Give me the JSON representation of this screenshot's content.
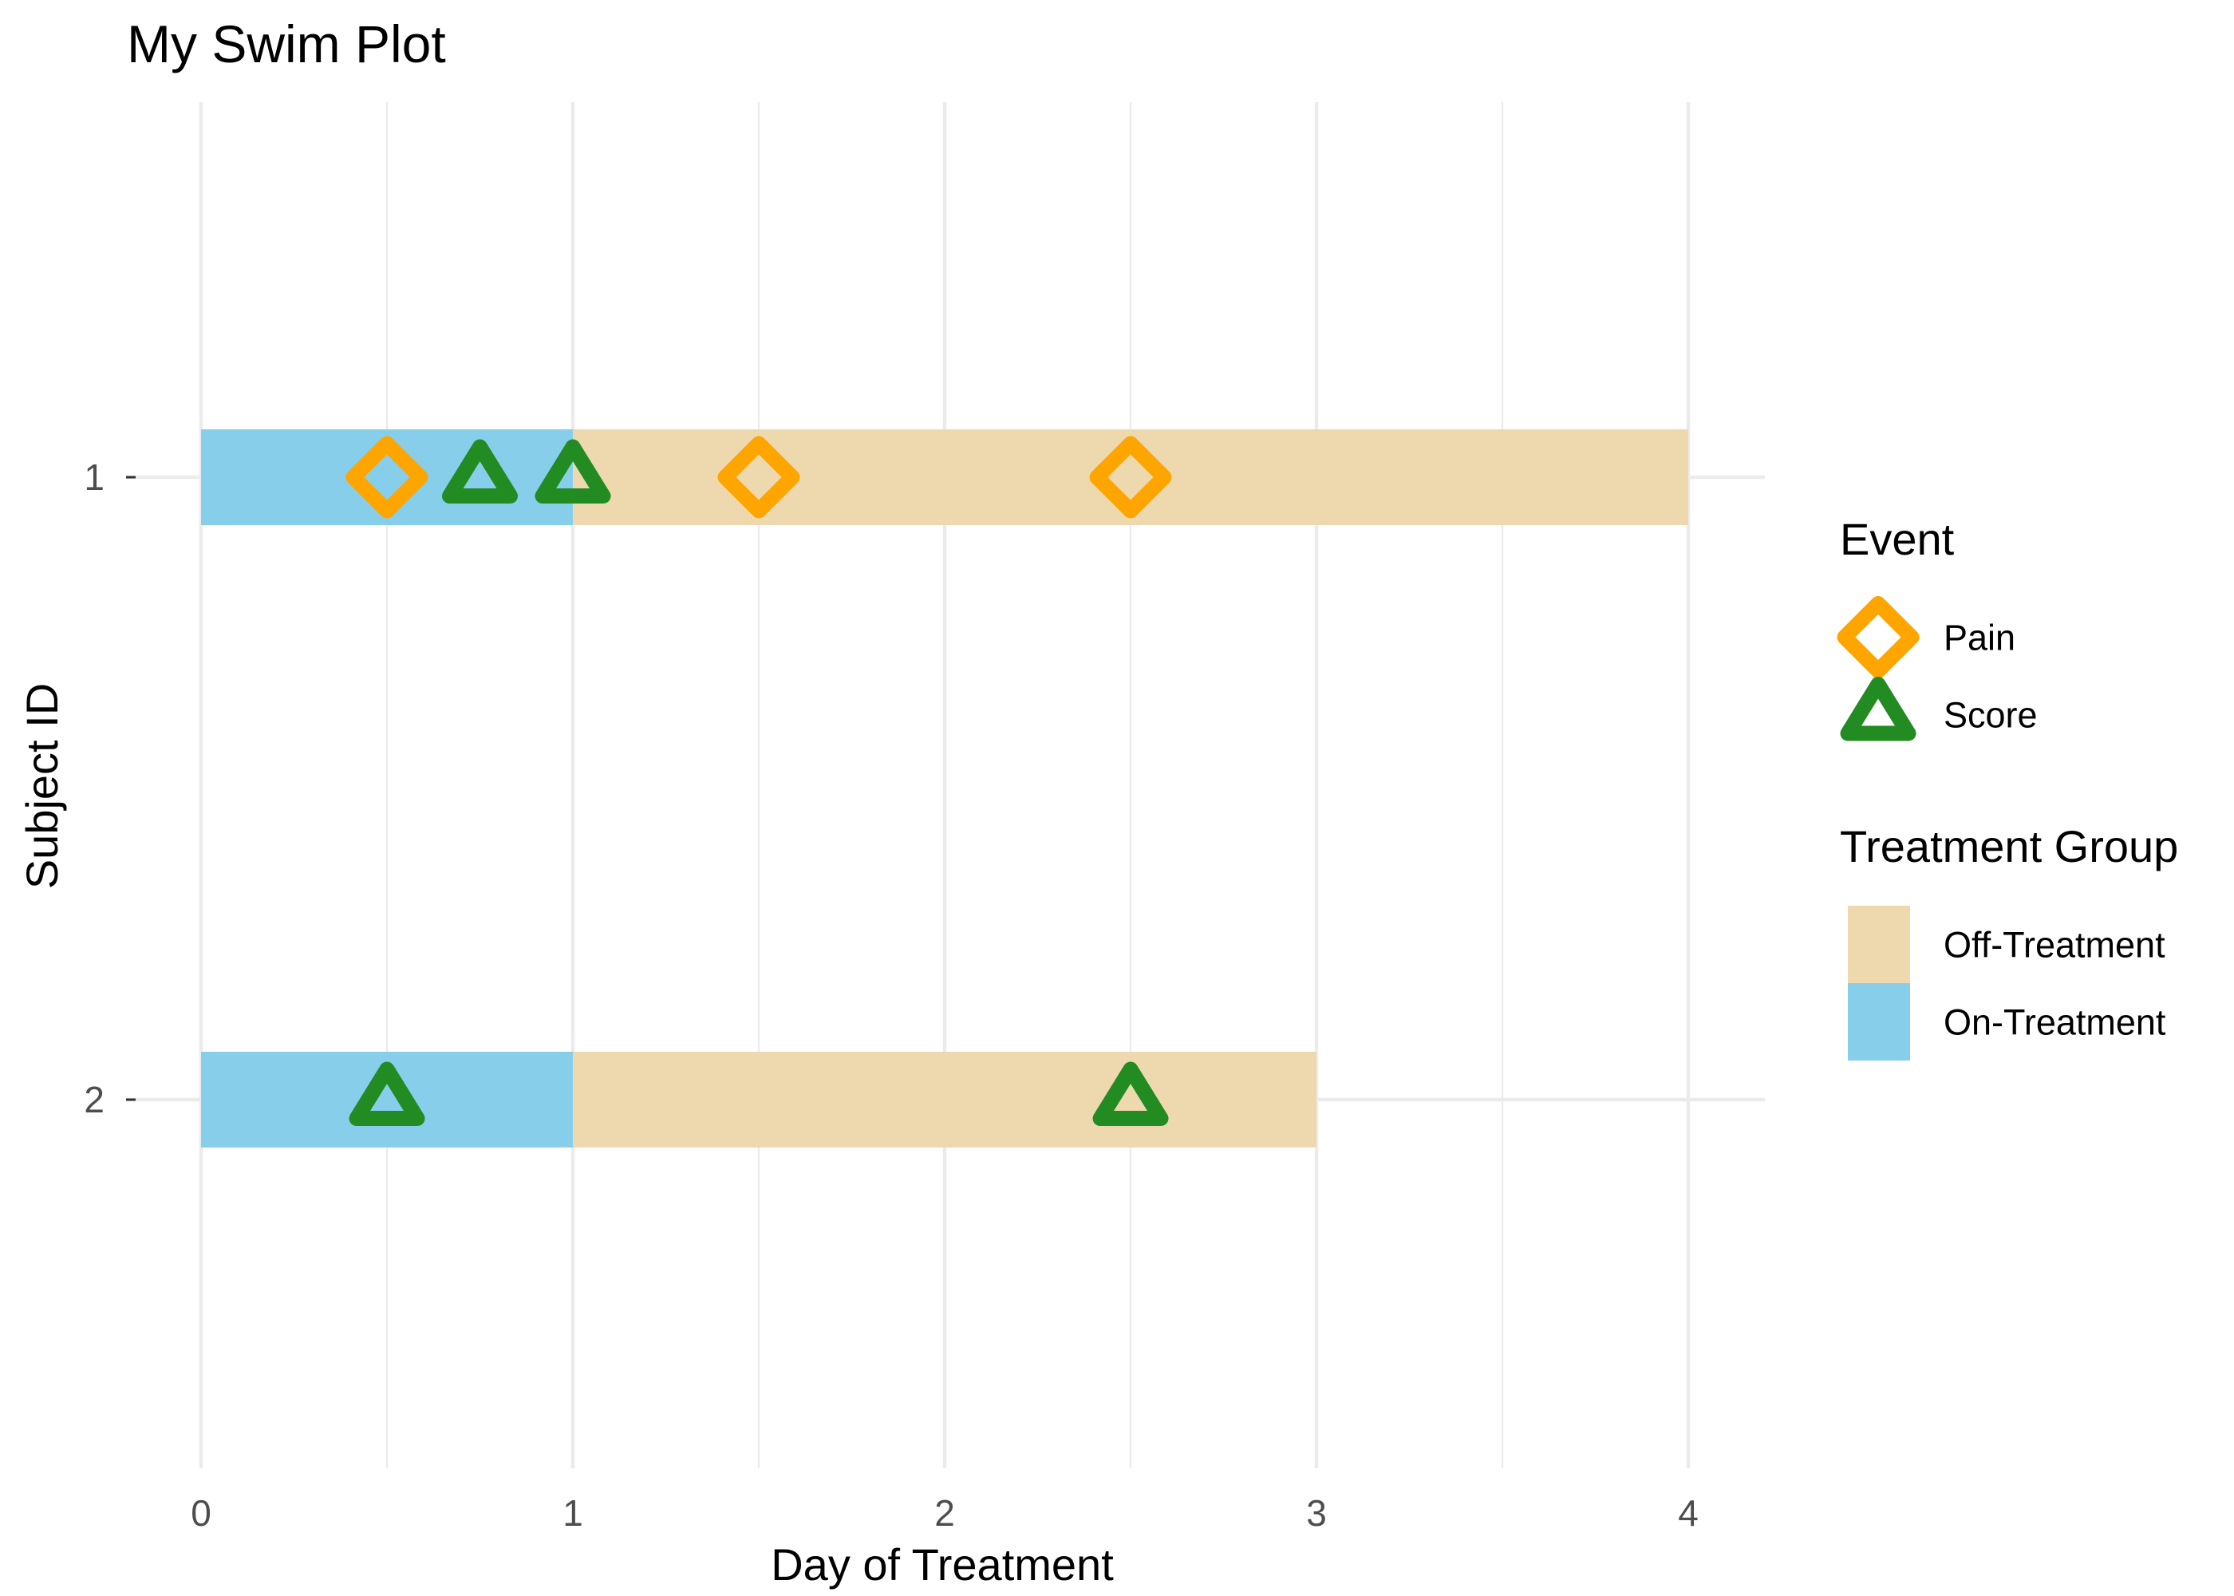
{
  "chart_data": {
    "type": "swimmer",
    "title": "My Swim Plot",
    "xlabel": "Day of Treatment",
    "ylabel": "Subject ID",
    "xlim": [
      0,
      4
    ],
    "x_ticks": [
      0,
      1,
      2,
      3,
      4
    ],
    "x_tick_labels": [
      "0",
      "1",
      "2",
      "3",
      "4"
    ],
    "y_categories": [
      "1",
      "2"
    ],
    "grid": true,
    "segments": [
      {
        "subject": "1",
        "group": "On-Treatment",
        "start": 0,
        "end": 1
      },
      {
        "subject": "1",
        "group": "Off-Treatment",
        "start": 1,
        "end": 4
      },
      {
        "subject": "2",
        "group": "On-Treatment",
        "start": 0,
        "end": 1
      },
      {
        "subject": "2",
        "group": "Off-Treatment",
        "start": 1,
        "end": 3
      }
    ],
    "events": [
      {
        "subject": "1",
        "event": "Pain",
        "x": 0.5
      },
      {
        "subject": "1",
        "event": "Score",
        "x": 0.75
      },
      {
        "subject": "1",
        "event": "Score",
        "x": 1.0
      },
      {
        "subject": "1",
        "event": "Pain",
        "x": 1.5
      },
      {
        "subject": "1",
        "event": "Pain",
        "x": 2.5
      },
      {
        "subject": "2",
        "event": "Score",
        "x": 0.5
      },
      {
        "subject": "2",
        "event": "Score",
        "x": 2.5
      }
    ],
    "legend_position": "right",
    "legends": [
      {
        "title": "Event",
        "entries": [
          {
            "label": "Pain",
            "shape": "diamond",
            "color": "#FFA500"
          },
          {
            "label": "Score",
            "shape": "triangle",
            "color": "#228B22"
          }
        ]
      },
      {
        "title": "Treatment Group",
        "entries": [
          {
            "label": "Off-Treatment",
            "color": "#EED9AF"
          },
          {
            "label": "On-Treatment",
            "color": "#87CEEB"
          }
        ]
      }
    ]
  }
}
